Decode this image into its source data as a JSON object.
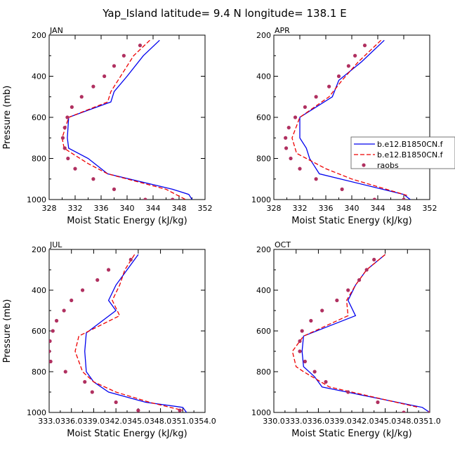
{
  "title": "Yap_Island  latitude= 9.4 N longitude= 138.1 E",
  "legend": [
    {
      "label": "b.e12.B1850CN.f",
      "color": "#0000ee",
      "dash": "solid",
      "marker": "none"
    },
    {
      "label": "b.e12.B1850CN.f",
      "color": "#ee0000",
      "dash": "dashed",
      "marker": "none"
    },
    {
      "label": "raobs",
      "color": "#b03060",
      "dash": "none",
      "marker": "dot"
    }
  ],
  "chart_data": [
    {
      "type": "line",
      "month": "JAN",
      "xlabel": "Moist Static Energy (kJ/kg)",
      "ylabel": "Pressure (mb)",
      "xlim": [
        328,
        352
      ],
      "ylim": [
        200,
        1000
      ],
      "y_inverted": true,
      "xticks": [
        "328",
        "332",
        "336",
        "340",
        "344",
        "348",
        "352"
      ],
      "yticks": [
        "200",
        "400",
        "600",
        "800",
        "1000"
      ],
      "series": [
        {
          "name": "b.e12.B1850CN.f",
          "style": "blue-solid",
          "x": [
            345.0,
            342.5,
            340.0,
            338.0,
            337.5,
            331.0,
            330.8,
            331.0,
            334.0,
            337.0,
            347.0,
            349.5,
            350.0
          ],
          "y": [
            225,
            300,
            400,
            475,
            525,
            600,
            700,
            750,
            800,
            875,
            950,
            975,
            1000
          ]
        },
        {
          "name": "b.e12.B1850CN.f",
          "style": "red-dashed",
          "x": [
            343.5,
            341.0,
            339.0,
            337.5,
            337.0,
            331.0,
            330.0,
            330.3,
            331.5,
            334.0,
            337.0,
            346.0,
            349.0
          ],
          "y": [
            225,
            300,
            400,
            475,
            525,
            600,
            700,
            750,
            775,
            825,
            875,
            950,
            1000
          ]
        },
        {
          "name": "raobs",
          "style": "dots",
          "x": [
            342.0,
            339.5,
            338.0,
            336.5,
            334.8,
            333.0,
            331.5,
            330.8,
            330.4,
            330.1,
            330.4,
            330.9,
            332.0,
            334.8,
            338.0,
            342.8,
            347.0
          ],
          "y": [
            250,
            300,
            350,
            400,
            450,
            500,
            550,
            600,
            650,
            700,
            750,
            800,
            850,
            900,
            950,
            1000,
            1000
          ]
        }
      ]
    },
    {
      "type": "line",
      "month": "APR",
      "xlabel": "Moist Static Energy (kJ/kg)",
      "ylabel": "",
      "xlim": [
        328,
        352
      ],
      "ylim": [
        200,
        1000
      ],
      "y_inverted": true,
      "xticks": [
        "328",
        "332",
        "336",
        "340",
        "344",
        "348",
        "352"
      ],
      "yticks": [
        "200",
        "400",
        "600",
        "800",
        "1000"
      ],
      "series": [
        {
          "name": "b.e12.B1850CN.f",
          "style": "blue-solid",
          "x": [
            345.0,
            341.5,
            338.0,
            337.0,
            332.0,
            332.0,
            333.0,
            333.5,
            334.0,
            335.0,
            348.0,
            349.0
          ],
          "y": [
            225,
            330,
            420,
            500,
            600,
            700,
            750,
            800,
            825,
            875,
            975,
            1000
          ]
        },
        {
          "name": "b.e12.B1850CN.f",
          "style": "red-dashed",
          "x": [
            344.5,
            341.0,
            338.5,
            336.5,
            332.0,
            330.8,
            331.5,
            333.0,
            336.0,
            340.0,
            348.5
          ],
          "y": [
            225,
            330,
            420,
            500,
            600,
            700,
            775,
            800,
            850,
            900,
            980
          ]
        },
        {
          "name": "raobs",
          "style": "dots",
          "x": [
            342.0,
            340.5,
            339.5,
            338.0,
            336.5,
            334.5,
            332.8,
            331.3,
            330.3,
            329.8,
            329.9,
            330.6,
            332.0,
            334.5,
            338.5,
            343.5,
            348.0
          ],
          "y": [
            250,
            300,
            350,
            400,
            450,
            500,
            550,
            600,
            650,
            700,
            750,
            800,
            850,
            900,
            950,
            1000,
            1000
          ]
        }
      ]
    },
    {
      "type": "line",
      "month": "JUL",
      "xlabel": "Moist Static Energy (kJ/kg)",
      "ylabel": "Pressure (mb)",
      "xlim": [
        333.0,
        354.0
      ],
      "ylim": [
        200,
        1000
      ],
      "y_inverted": true,
      "xticks": [
        "333.0",
        "336.0",
        "339.0",
        "342.0",
        "345.0",
        "348.0",
        "351.0",
        "354.0"
      ],
      "yticks": [
        "200",
        "400",
        "600",
        "800",
        "1000"
      ],
      "series": [
        {
          "name": "b.e12.B1850CN.f",
          "style": "blue-solid",
          "x": [
            345.0,
            343.5,
            342.0,
            341.0,
            342.0,
            338.0,
            337.8,
            338.0,
            339.0,
            341.0,
            346.0,
            351.0,
            351.5
          ],
          "y": [
            225,
            300,
            375,
            450,
            500,
            610,
            700,
            800,
            850,
            900,
            950,
            975,
            1000
          ]
        },
        {
          "name": "b.e12.B1850CN.f",
          "style": "red-dashed",
          "x": [
            344.5,
            343.2,
            342.5,
            341.5,
            342.5,
            337.0,
            336.5,
            337.5,
            339.0,
            342.0,
            346.5,
            351.0
          ],
          "y": [
            225,
            300,
            375,
            450,
            525,
            625,
            700,
            800,
            850,
            900,
            950,
            990
          ]
        },
        {
          "name": "raobs",
          "style": "dots",
          "x": [
            344.0,
            341.0,
            339.5,
            337.5,
            336.0,
            335.0,
            334.0,
            333.5,
            333.1,
            333.0,
            333.2,
            335.2,
            337.8,
            338.8,
            342.0,
            345.0,
            350.6
          ],
          "y": [
            250,
            300,
            350,
            400,
            450,
            500,
            550,
            600,
            650,
            700,
            750,
            800,
            850,
            900,
            950,
            990,
            990
          ]
        }
      ]
    },
    {
      "type": "line",
      "month": "OCT",
      "xlabel": "Moist Static Energy (kJ/kg)",
      "ylabel": "",
      "xlim": [
        330.0,
        351.0
      ],
      "ylim": [
        200,
        1000
      ],
      "y_inverted": true,
      "xticks": [
        "330.0",
        "333.0",
        "336.0",
        "339.0",
        "342.0",
        "345.0",
        "348.0",
        "351.0"
      ],
      "yticks": [
        "200",
        "400",
        "600",
        "800",
        "1000"
      ],
      "series": [
        {
          "name": "b.e12.B1850CN.f",
          "style": "blue-solid",
          "x": [
            345.0,
            342.5,
            341.0,
            340.0,
            341.0,
            334.0,
            333.8,
            334.0,
            335.5,
            336.5,
            350.0,
            351.0
          ],
          "y": [
            225,
            300,
            375,
            450,
            525,
            625,
            700,
            775,
            825,
            875,
            975,
            1000
          ]
        },
        {
          "name": "b.e12.B1850CN.f",
          "style": "red-dashed",
          "x": [
            345.0,
            342.5,
            341.0,
            339.8,
            340.0,
            334.0,
            332.5,
            333.0,
            334.0,
            337.5,
            349.5
          ],
          "y": [
            225,
            300,
            375,
            450,
            525,
            625,
            700,
            775,
            800,
            875,
            975
          ]
        },
        {
          "name": "raobs",
          "style": "dots",
          "x": [
            343.5,
            342.5,
            341.5,
            340.0,
            338.5,
            336.5,
            335.0,
            333.8,
            333.5,
            333.5,
            334.2,
            335.5,
            337.0,
            340.0,
            344.0,
            347.5,
            351.0
          ],
          "y": [
            250,
            300,
            350,
            400,
            450,
            500,
            550,
            600,
            650,
            700,
            750,
            800,
            850,
            900,
            950,
            1000,
            1000
          ]
        }
      ]
    }
  ]
}
